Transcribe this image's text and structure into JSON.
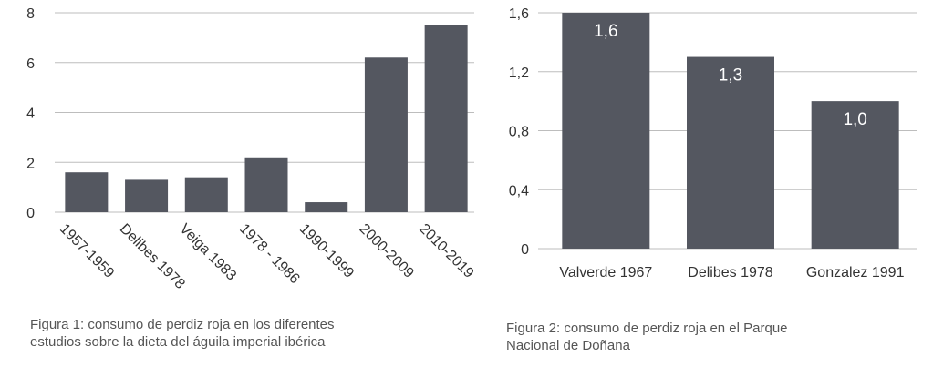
{
  "colors": {
    "bar": "#545760",
    "grid": "#bdbdbd",
    "axis": "#333333",
    "value_label": "#ffffff",
    "caption": "#555555"
  },
  "chart_data": [
    {
      "type": "bar",
      "title": "",
      "xlabel": "",
      "ylabel": "",
      "categories": [
        "1957-1959",
        "Delibes 1978",
        "Veiga 1983",
        "1978 - 1986",
        "1990-1999",
        "2000-2009",
        "2010-2019"
      ],
      "values": [
        1.6,
        1.3,
        1.4,
        2.2,
        0.4,
        6.2,
        7.5
      ],
      "ylim": [
        0,
        8
      ],
      "yticks": [
        0,
        2,
        4,
        6,
        8
      ],
      "ytick_labels": [
        "0",
        "2",
        "4",
        "6",
        "8"
      ],
      "grid": true,
      "data_labels": false,
      "caption_lines": [
        "Figura 1: consumo de perdiz roja  en los diferentes",
        "estudios sobre la dieta del águila imperial ibérica"
      ]
    },
    {
      "type": "bar",
      "title": "",
      "xlabel": "",
      "ylabel": "",
      "categories": [
        "Valverde 1967",
        "Delibes 1978",
        "Gonzalez 1991"
      ],
      "values": [
        1.6,
        1.3,
        1.0
      ],
      "data_labels": [
        "1,6",
        "1,3",
        "1,0"
      ],
      "ylim": [
        0,
        1.6
      ],
      "yticks": [
        0,
        0.4,
        0.8,
        1.2,
        1.6
      ],
      "ytick_labels": [
        "0",
        "0,4",
        "0,8",
        "1,2",
        "1,6"
      ],
      "grid": true,
      "caption_lines": [
        "Figura 2: consumo de perdiz roja en el Parque",
        "Nacional de Doñana"
      ]
    }
  ]
}
